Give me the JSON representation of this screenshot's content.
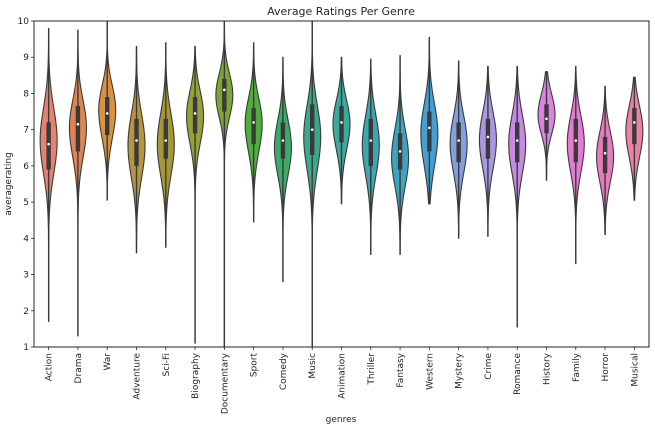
{
  "chart_data": {
    "type": "violin",
    "title": "Average Ratings Per Genre",
    "xlabel": "genres",
    "ylabel": "averagerating",
    "ylim": [
      1,
      10
    ],
    "yticks": [
      1,
      2,
      3,
      4,
      5,
      6,
      7,
      8,
      9,
      10
    ],
    "grid": false,
    "categories": [
      "Action",
      "Drama",
      "War",
      "Adventure",
      "Sci-Fi",
      "Biography",
      "Documentary",
      "Sport",
      "Comedy",
      "Music",
      "Animation",
      "Thriller",
      "Fantasy",
      "Western",
      "Mystery",
      "Crime",
      "Romance",
      "History",
      "Family",
      "Horror",
      "Musical"
    ],
    "colors": [
      "#e8816e",
      "#e0854f",
      "#d99241",
      "#b8943e",
      "#a6963a",
      "#96a039",
      "#7fa534",
      "#52ad3f",
      "#3cab6a",
      "#3ba88a",
      "#3ca99c",
      "#3ca7ad",
      "#3da4bd",
      "#44a0d4",
      "#839fe0",
      "#a998e3",
      "#c48ae4",
      "#db83e3",
      "#e37bd4",
      "#e87bbd",
      "#e982a6"
    ],
    "median": [
      6.6,
      7.15,
      7.45,
      6.7,
      6.7,
      7.45,
      8.1,
      7.2,
      6.7,
      7.0,
      7.2,
      6.7,
      6.4,
      7.05,
      6.7,
      6.8,
      6.7,
      7.3,
      6.7,
      6.35,
      7.2
    ],
    "q1": [
      5.9,
      6.4,
      6.85,
      6.0,
      6.2,
      6.9,
      7.5,
      6.6,
      6.2,
      6.3,
      6.65,
      6.0,
      5.9,
      6.4,
      6.1,
      6.2,
      6.1,
      6.9,
      6.1,
      5.8,
      6.6
    ],
    "q3": [
      7.2,
      7.65,
      7.9,
      7.3,
      7.3,
      7.9,
      8.4,
      7.6,
      7.2,
      7.7,
      7.65,
      7.3,
      6.9,
      7.5,
      7.2,
      7.3,
      7.2,
      7.7,
      7.3,
      6.8,
      7.6
    ],
    "min": [
      1.7,
      1.3,
      5.05,
      3.6,
      3.75,
      1.1,
      1.0,
      4.45,
      2.8,
      1.0,
      4.95,
      3.55,
      3.55,
      4.95,
      4.0,
      4.05,
      1.55,
      5.6,
      3.3,
      4.1,
      5.05
    ],
    "max": [
      9.8,
      9.75,
      10.0,
      9.3,
      9.4,
      9.3,
      10.0,
      9.4,
      9.0,
      10.0,
      9.0,
      8.95,
      9.05,
      9.55,
      8.9,
      8.75,
      8.75,
      8.6,
      8.75,
      8.2,
      8.45
    ],
    "modes": [
      [
        [
          6.9,
          0.9
        ],
        [
          6.3,
          0.5
        ]
      ],
      [
        [
          7.2,
          1.0
        ],
        [
          6.4,
          0.35
        ]
      ],
      [
        [
          7.7,
          1.0
        ],
        [
          6.9,
          0.45
        ]
      ],
      [
        [
          6.9,
          0.75
        ],
        [
          6.1,
          0.6
        ]
      ],
      [
        [
          6.8,
          0.8
        ],
        [
          6.2,
          0.45
        ]
      ],
      [
        [
          7.5,
          1.0
        ],
        [
          6.8,
          0.35
        ]
      ],
      [
        [
          8.1,
          0.9
        ],
        [
          7.6,
          0.45
        ]
      ],
      [
        [
          7.3,
          1.0
        ],
        [
          6.5,
          0.35
        ]
      ],
      [
        [
          6.7,
          0.85
        ],
        [
          6.1,
          0.45
        ]
      ],
      [
        [
          7.0,
          0.8
        ],
        [
          6.2,
          0.35
        ]
      ],
      [
        [
          7.3,
          1.0
        ],
        [
          6.6,
          0.4
        ]
      ],
      [
        [
          6.8,
          0.8
        ],
        [
          6.1,
          0.45
        ]
      ],
      [
        [
          6.4,
          0.8
        ],
        [
          5.9,
          0.45
        ]
      ],
      [
        [
          7.1,
          0.8
        ],
        [
          6.3,
          0.4
        ]
      ],
      [
        [
          6.8,
          0.85
        ],
        [
          6.1,
          0.4
        ]
      ],
      [
        [
          6.9,
          0.9
        ],
        [
          6.2,
          0.4
        ]
      ],
      [
        [
          6.8,
          0.85
        ],
        [
          6.2,
          0.45
        ]
      ],
      [
        [
          7.3,
          1.0
        ],
        [
          7.8,
          0.4
        ]
      ],
      [
        [
          6.8,
          0.9
        ],
        [
          6.1,
          0.4
        ]
      ],
      [
        [
          6.4,
          0.9
        ],
        [
          5.8,
          0.35
        ]
      ],
      [
        [
          7.1,
          1.0
        ],
        [
          6.5,
          0.4
        ]
      ]
    ],
    "spread": [
      0.85,
      0.7,
      0.6,
      0.75,
      0.8,
      0.65,
      0.55,
      0.65,
      0.7,
      0.8,
      0.6,
      0.75,
      0.75,
      0.75,
      0.7,
      0.7,
      0.75,
      0.5,
      0.7,
      0.65,
      0.65
    ]
  }
}
